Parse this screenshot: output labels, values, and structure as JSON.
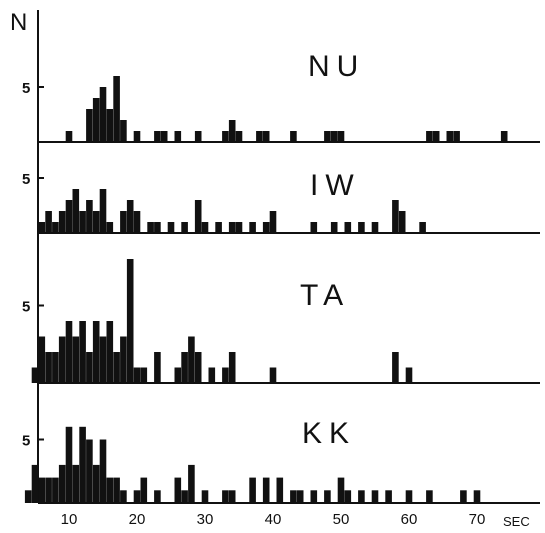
{
  "chart_data": {
    "type": "bar",
    "y_axis_label": "N",
    "x_unit": "SEC",
    "x_ticks": [
      10,
      20,
      30,
      40,
      50,
      60,
      70
    ],
    "xlim": [
      0,
      78
    ],
    "panels": [
      {
        "name": "NU",
        "y_tick": 5,
        "ylim": [
          0,
          8
        ],
        "bars": [
          {
            "x": 10,
            "n": 1
          },
          {
            "x": 13,
            "n": 3
          },
          {
            "x": 14,
            "n": 4
          },
          {
            "x": 15,
            "n": 5
          },
          {
            "x": 16,
            "n": 3
          },
          {
            "x": 17,
            "n": 6
          },
          {
            "x": 18,
            "n": 2
          },
          {
            "x": 20,
            "n": 1
          },
          {
            "x": 23,
            "n": 1
          },
          {
            "x": 24,
            "n": 1
          },
          {
            "x": 26,
            "n": 1
          },
          {
            "x": 29,
            "n": 1
          },
          {
            "x": 33,
            "n": 1
          },
          {
            "x": 34,
            "n": 2
          },
          {
            "x": 35,
            "n": 1
          },
          {
            "x": 38,
            "n": 1
          },
          {
            "x": 39,
            "n": 1
          },
          {
            "x": 43,
            "n": 1
          },
          {
            "x": 48,
            "n": 1
          },
          {
            "x": 49,
            "n": 1
          },
          {
            "x": 50,
            "n": 1
          },
          {
            "x": 63,
            "n": 1
          },
          {
            "x": 64,
            "n": 1
          },
          {
            "x": 66,
            "n": 1
          },
          {
            "x": 67,
            "n": 1
          },
          {
            "x": 74,
            "n": 1
          }
        ]
      },
      {
        "name": "IW",
        "y_tick": 5,
        "ylim": [
          0,
          5
        ],
        "bars": [
          {
            "x": 6,
            "n": 1
          },
          {
            "x": 7,
            "n": 2
          },
          {
            "x": 8,
            "n": 1
          },
          {
            "x": 9,
            "n": 2
          },
          {
            "x": 10,
            "n": 3
          },
          {
            "x": 11,
            "n": 4
          },
          {
            "x": 12,
            "n": 2
          },
          {
            "x": 13,
            "n": 3
          },
          {
            "x": 14,
            "n": 2
          },
          {
            "x": 15,
            "n": 4
          },
          {
            "x": 16,
            "n": 1
          },
          {
            "x": 18,
            "n": 2
          },
          {
            "x": 19,
            "n": 3
          },
          {
            "x": 20,
            "n": 2
          },
          {
            "x": 22,
            "n": 1
          },
          {
            "x": 23,
            "n": 1
          },
          {
            "x": 25,
            "n": 1
          },
          {
            "x": 27,
            "n": 1
          },
          {
            "x": 29,
            "n": 3
          },
          {
            "x": 30,
            "n": 1
          },
          {
            "x": 32,
            "n": 1
          },
          {
            "x": 34,
            "n": 1
          },
          {
            "x": 35,
            "n": 1
          },
          {
            "x": 37,
            "n": 1
          },
          {
            "x": 39,
            "n": 1
          },
          {
            "x": 40,
            "n": 2
          },
          {
            "x": 46,
            "n": 1
          },
          {
            "x": 49,
            "n": 1
          },
          {
            "x": 51,
            "n": 1
          },
          {
            "x": 53,
            "n": 1
          },
          {
            "x": 55,
            "n": 1
          },
          {
            "x": 58,
            "n": 3
          },
          {
            "x": 59,
            "n": 2
          },
          {
            "x": 62,
            "n": 1
          }
        ]
      },
      {
        "name": "TA",
        "y_tick": 5,
        "ylim": [
          0,
          9
        ],
        "bars": [
          {
            "x": 5,
            "n": 1
          },
          {
            "x": 6,
            "n": 3
          },
          {
            "x": 7,
            "n": 2
          },
          {
            "x": 8,
            "n": 2
          },
          {
            "x": 9,
            "n": 3
          },
          {
            "x": 10,
            "n": 4
          },
          {
            "x": 11,
            "n": 3
          },
          {
            "x": 12,
            "n": 4
          },
          {
            "x": 13,
            "n": 2
          },
          {
            "x": 14,
            "n": 4
          },
          {
            "x": 15,
            "n": 3
          },
          {
            "x": 16,
            "n": 4
          },
          {
            "x": 17,
            "n": 2
          },
          {
            "x": 18,
            "n": 3
          },
          {
            "x": 19,
            "n": 8
          },
          {
            "x": 20,
            "n": 1
          },
          {
            "x": 21,
            "n": 1
          },
          {
            "x": 23,
            "n": 2
          },
          {
            "x": 26,
            "n": 1
          },
          {
            "x": 27,
            "n": 2
          },
          {
            "x": 28,
            "n": 3
          },
          {
            "x": 29,
            "n": 2
          },
          {
            "x": 31,
            "n": 1
          },
          {
            "x": 33,
            "n": 1
          },
          {
            "x": 34,
            "n": 2
          },
          {
            "x": 40,
            "n": 1
          },
          {
            "x": 58,
            "n": 2
          },
          {
            "x": 60,
            "n": 1
          }
        ]
      },
      {
        "name": "KK",
        "y_tick": 5,
        "ylim": [
          0,
          7
        ],
        "bars": [
          {
            "x": 4,
            "n": 1
          },
          {
            "x": 5,
            "n": 3
          },
          {
            "x": 6,
            "n": 2
          },
          {
            "x": 7,
            "n": 2
          },
          {
            "x": 8,
            "n": 2
          },
          {
            "x": 9,
            "n": 3
          },
          {
            "x": 10,
            "n": 6
          },
          {
            "x": 11,
            "n": 3
          },
          {
            "x": 12,
            "n": 6
          },
          {
            "x": 13,
            "n": 5
          },
          {
            "x": 14,
            "n": 3
          },
          {
            "x": 15,
            "n": 5
          },
          {
            "x": 16,
            "n": 2
          },
          {
            "x": 17,
            "n": 2
          },
          {
            "x": 18,
            "n": 1
          },
          {
            "x": 20,
            "n": 1
          },
          {
            "x": 21,
            "n": 2
          },
          {
            "x": 23,
            "n": 1
          },
          {
            "x": 26,
            "n": 2
          },
          {
            "x": 27,
            "n": 1
          },
          {
            "x": 28,
            "n": 3
          },
          {
            "x": 30,
            "n": 1
          },
          {
            "x": 33,
            "n": 1
          },
          {
            "x": 34,
            "n": 1
          },
          {
            "x": 37,
            "n": 2
          },
          {
            "x": 39,
            "n": 2
          },
          {
            "x": 41,
            "n": 2
          },
          {
            "x": 43,
            "n": 1
          },
          {
            "x": 44,
            "n": 1
          },
          {
            "x": 46,
            "n": 1
          },
          {
            "x": 48,
            "n": 1
          },
          {
            "x": 50,
            "n": 2
          },
          {
            "x": 51,
            "n": 1
          },
          {
            "x": 53,
            "n": 1
          },
          {
            "x": 55,
            "n": 1
          },
          {
            "x": 57,
            "n": 1
          },
          {
            "x": 60,
            "n": 1
          },
          {
            "x": 63,
            "n": 1
          },
          {
            "x": 68,
            "n": 1
          },
          {
            "x": 70,
            "n": 1
          }
        ]
      }
    ]
  }
}
